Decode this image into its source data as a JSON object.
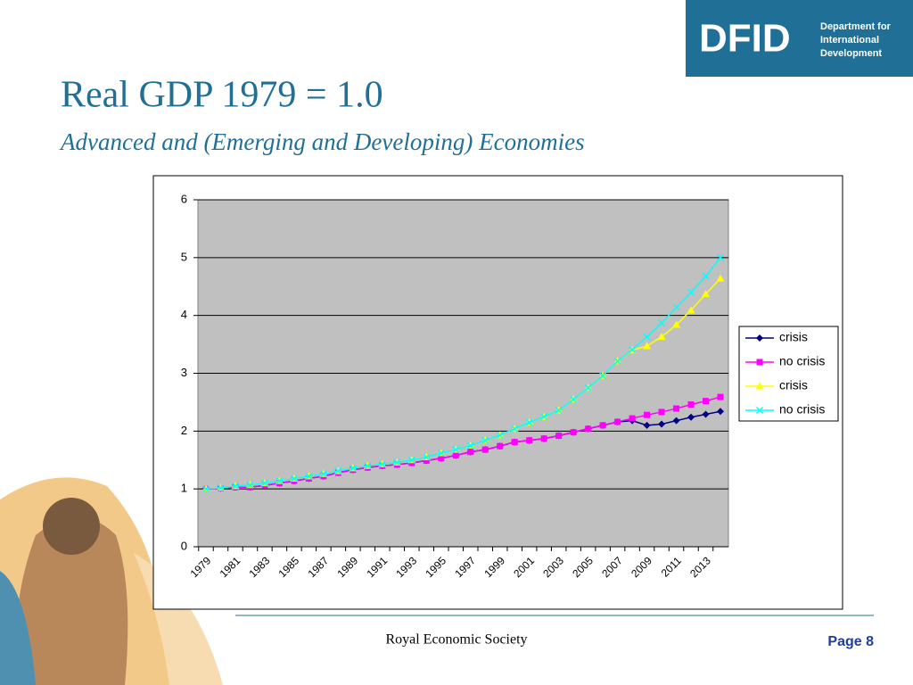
{
  "slide": {
    "title": "Real GDP 1979 = 1.0",
    "subtitle": "Advanced and (Emerging and Developing) Economies",
    "logo": {
      "mark": "DFID",
      "lines": [
        "Department for",
        "International",
        "Development"
      ]
    },
    "footer": "Royal Economic Society",
    "page": "Page 8"
  },
  "chart_data": {
    "type": "line",
    "categories": [
      "1979",
      null,
      "1981",
      null,
      "1983",
      null,
      "1985",
      null,
      "1987",
      null,
      "1989",
      null,
      "1991",
      null,
      "1993",
      null,
      "1995",
      null,
      "1997",
      null,
      "1999",
      null,
      "2001",
      null,
      "2003",
      null,
      "2005",
      null,
      "2007",
      null,
      "2009",
      null,
      "2011",
      null,
      "2013",
      null
    ],
    "series": [
      {
        "name": "crisis",
        "color": "#000080",
        "marker": "diamond",
        "values": [
          1.0,
          1.01,
          1.03,
          1.03,
          1.06,
          1.1,
          1.14,
          1.18,
          1.22,
          1.28,
          1.33,
          1.37,
          1.4,
          1.42,
          1.45,
          1.49,
          1.53,
          1.58,
          1.64,
          1.68,
          1.74,
          1.81,
          1.84,
          1.87,
          1.92,
          1.98,
          2.04,
          2.1,
          2.16,
          2.18,
          2.1,
          2.12,
          2.18,
          2.24,
          2.29,
          2.34
        ]
      },
      {
        "name": "no crisis",
        "color": "#ff00ff",
        "marker": "square",
        "values": [
          1.0,
          1.01,
          1.03,
          1.03,
          1.06,
          1.1,
          1.14,
          1.18,
          1.22,
          1.28,
          1.33,
          1.37,
          1.4,
          1.42,
          1.45,
          1.49,
          1.53,
          1.58,
          1.64,
          1.68,
          1.74,
          1.81,
          1.84,
          1.87,
          1.92,
          1.98,
          2.04,
          2.1,
          2.16,
          2.22,
          2.28,
          2.33,
          2.39,
          2.46,
          2.52,
          2.59
        ]
      },
      {
        "name": "crisis",
        "color": "#ffff00",
        "marker": "triangle",
        "values": [
          1.0,
          1.02,
          1.05,
          1.07,
          1.1,
          1.14,
          1.18,
          1.22,
          1.26,
          1.31,
          1.36,
          1.4,
          1.43,
          1.46,
          1.5,
          1.55,
          1.62,
          1.68,
          1.75,
          1.84,
          1.93,
          2.04,
          2.15,
          2.25,
          2.36,
          2.55,
          2.75,
          2.96,
          3.21,
          3.4,
          3.47,
          3.63,
          3.84,
          4.09,
          4.37,
          4.64
        ]
      },
      {
        "name": "no crisis",
        "color": "#00ffff",
        "marker": "x",
        "values": [
          1.0,
          1.02,
          1.05,
          1.07,
          1.1,
          1.14,
          1.18,
          1.22,
          1.26,
          1.31,
          1.36,
          1.4,
          1.43,
          1.46,
          1.5,
          1.55,
          1.62,
          1.68,
          1.75,
          1.84,
          1.93,
          2.04,
          2.15,
          2.25,
          2.36,
          2.55,
          2.75,
          2.96,
          3.21,
          3.41,
          3.63,
          3.87,
          4.14,
          4.4,
          4.68,
          5.0
        ]
      }
    ],
    "ylim": [
      0,
      6
    ],
    "yticks": [
      0,
      1,
      2,
      3,
      4,
      5,
      6
    ],
    "grid": true,
    "legend": "right"
  }
}
